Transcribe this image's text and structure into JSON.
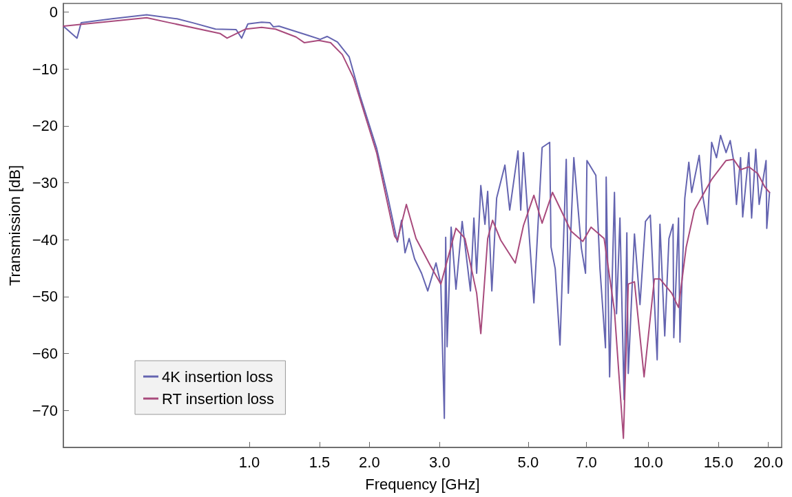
{
  "chart_data": {
    "type": "line",
    "xlabel": "Frequency [GHz]",
    "ylabel": "Transmission [dB]",
    "log": "x",
    "xlim": [
      0.342,
      21.6
    ],
    "ylim": [
      -76.5,
      1.5
    ],
    "xticks": [
      {
        "value": 1,
        "label": "1.0"
      },
      {
        "value": 1.5,
        "label": "1.5"
      },
      {
        "value": 2,
        "label": "2.0"
      },
      {
        "value": 3,
        "label": "3.0"
      },
      {
        "value": 5,
        "label": "5.0"
      },
      {
        "value": 7,
        "label": "7.0"
      },
      {
        "value": 10,
        "label": "10.0"
      },
      {
        "value": 15,
        "label": "15.0"
      },
      {
        "value": 20,
        "label": "20.0"
      }
    ],
    "yticks": [
      0,
      {
        "value": -10,
        "label": "−10"
      },
      {
        "value": -20,
        "label": "−20"
      },
      {
        "value": -30,
        "label": "−30"
      },
      {
        "value": -40,
        "label": "−40"
      },
      {
        "value": -50,
        "label": "−50"
      },
      {
        "value": -60,
        "label": "−60"
      },
      {
        "value": -70,
        "label": "−70"
      }
    ],
    "grid": false,
    "legend": "bottom left",
    "marker": "none",
    "line_style": "solid",
    "series": [
      {
        "name": "4K insertion loss",
        "color": "#6464b0",
        "x": [
          0.342,
          0.37,
          0.379,
          0.453,
          0.553,
          0.659,
          0.722,
          0.823,
          0.927,
          0.957,
          0.992,
          1.074,
          1.127,
          1.149,
          1.187,
          1.402,
          1.506,
          1.567,
          1.664,
          1.78,
          1.897,
          2.087,
          2.225,
          2.351,
          2.408,
          2.457,
          2.516,
          2.597,
          2.703,
          2.801,
          2.938,
          3.021,
          3.083,
          3.107,
          3.132,
          3.206,
          3.297,
          3.417,
          3.584,
          3.656,
          3.715,
          3.805,
          3.897,
          3.959,
          4.055,
          4.169,
          4.373,
          4.496,
          4.716,
          4.791,
          4.868,
          5.169,
          5.42,
          5.662,
          5.707,
          5.846,
          6.01,
          6.23,
          6.305,
          6.509,
          6.799,
          6.963,
          7.021,
          7.391,
          7.569,
          7.814,
          7.845,
          8.002,
          8.229,
          8.328,
          8.494,
          8.7,
          8.839,
          8.911,
          9.236,
          9.535,
          9.842,
          10.12,
          10.53,
          10.7,
          11.0,
          11.27,
          11.54,
          11.59,
          11.91,
          12.01,
          12.35,
          12.64,
          12.85,
          13.42,
          13.69,
          14.08,
          14.42,
          14.83,
          15.18,
          15.67,
          16.05,
          16.37,
          16.64,
          17.04,
          17.25,
          17.87,
          18.16,
          18.6,
          18.97,
          19.74,
          19.82,
          20.14
        ],
        "values": [
          -2.5,
          -4.6,
          -1.9,
          -1.2,
          -0.5,
          -1.2,
          -1.9,
          -3.0,
          -3.1,
          -4.6,
          -2.1,
          -1.8,
          -1.9,
          -2.6,
          -2.5,
          -4.1,
          -4.8,
          -4.3,
          -5.3,
          -7.9,
          -14.8,
          -24.0,
          -32.5,
          -40.4,
          -36.6,
          -42.3,
          -39.8,
          -43.4,
          -45.9,
          -49.0,
          -44.1,
          -47.8,
          -71.4,
          -39.6,
          -58.8,
          -37.8,
          -48.7,
          -36.8,
          -49.0,
          -36.2,
          -45.9,
          -30.5,
          -37.3,
          -31.5,
          -49.0,
          -32.7,
          -26.9,
          -34.8,
          -24.4,
          -34.8,
          -24.7,
          -51.1,
          -23.8,
          -22.9,
          -41.3,
          -45.1,
          -58.5,
          -25.9,
          -49.4,
          -25.6,
          -41.5,
          -45.9,
          -26.1,
          -28.7,
          -45.1,
          -59.0,
          -29.0,
          -64.1,
          -31.7,
          -53.0,
          -36.2,
          -68.1,
          -38.8,
          -63.5,
          -39.0,
          -51.4,
          -36.8,
          -35.7,
          -61.1,
          -37.3,
          -56.9,
          -39.8,
          -37.3,
          -57.2,
          -36.2,
          -58.0,
          -32.7,
          -26.4,
          -31.7,
          -25.2,
          -32.2,
          -37.3,
          -22.9,
          -25.6,
          -21.7,
          -24.7,
          -22.6,
          -26.1,
          -33.8,
          -25.6,
          -36.0,
          -24.7,
          -36.2,
          -24.1,
          -33.8,
          -26.1,
          -38.0,
          -31.7
        ]
      },
      {
        "name": "RT insertion loss",
        "color": "#a84a7c",
        "x": [
          0.342,
          0.553,
          0.633,
          0.846,
          0.88,
          0.98,
          1.074,
          1.163,
          1.31,
          1.375,
          1.494,
          1.599,
          1.711,
          1.823,
          2.087,
          2.314,
          2.351,
          2.476,
          2.618,
          2.846,
          3.021,
          3.297,
          3.472,
          3.715,
          3.805,
          3.959,
          4.073,
          4.269,
          4.642,
          4.868,
          5.169,
          5.42,
          5.754,
          6.405,
          6.855,
          7.188,
          7.753,
          8.229,
          8.665,
          8.911,
          9.236,
          9.763,
          10.36,
          10.7,
          11.45,
          11.91,
          12.45,
          13.05,
          14.42,
          15.67,
          16.37,
          17.04,
          17.87,
          18.82,
          19.58,
          20.14
        ],
        "values": [
          -2.5,
          -1.0,
          -1.9,
          -3.8,
          -4.6,
          -3.0,
          -2.7,
          -3.0,
          -4.4,
          -5.4,
          -5.0,
          -5.4,
          -7.5,
          -11.5,
          -24.8,
          -39.4,
          -40.1,
          -33.8,
          -39.8,
          -44.6,
          -47.8,
          -38.0,
          -39.8,
          -49.4,
          -56.5,
          -39.8,
          -36.6,
          -40.1,
          -44.1,
          -37.5,
          -32.2,
          -37.1,
          -31.7,
          -38.5,
          -40.3,
          -37.8,
          -39.8,
          -52.5,
          -74.9,
          -47.8,
          -47.4,
          -64.1,
          -46.9,
          -46.9,
          -49.4,
          -51.9,
          -41.3,
          -34.8,
          -29.4,
          -26.1,
          -25.9,
          -27.7,
          -27.2,
          -28.4,
          -30.7,
          -31.7
        ]
      }
    ]
  }
}
